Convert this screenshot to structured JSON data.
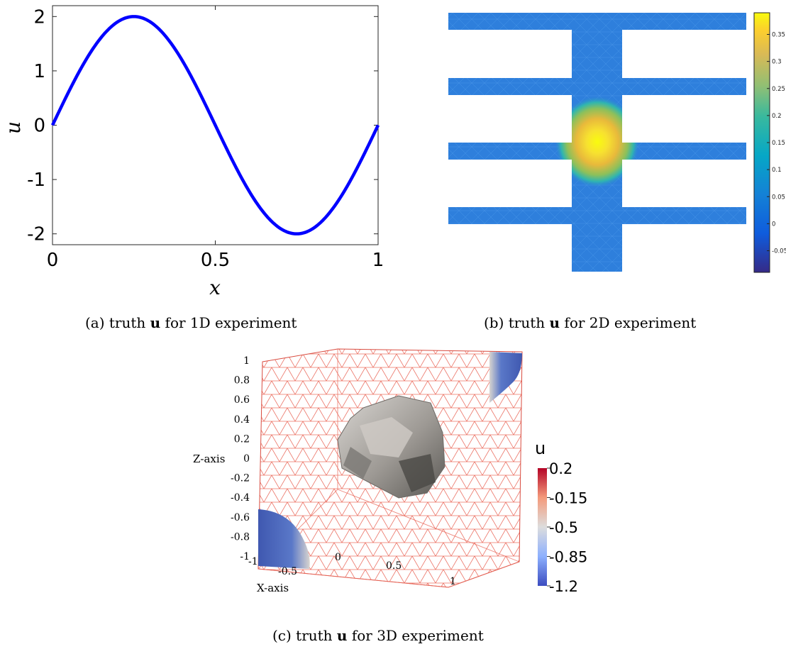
{
  "captions": {
    "a": {
      "prefix": "(a) truth ",
      "symbol": "u",
      "suffix": " for 1D experiment"
    },
    "b": {
      "prefix": "(b) truth ",
      "symbol": "u",
      "suffix": " for 2D experiment"
    },
    "c": {
      "prefix": "(c) truth ",
      "symbol": "u",
      "suffix": " for 3D experiment"
    }
  },
  "chart_data": [
    {
      "id": "a",
      "type": "line",
      "title": "",
      "xlabel": "x",
      "ylabel": "u",
      "xlim": [
        0,
        1
      ],
      "ylim": [
        -2.2,
        2.2
      ],
      "xticks": [
        0,
        0.5,
        1
      ],
      "xtick_labels": [
        "0",
        "0.5",
        "1"
      ],
      "yticks": [
        -2,
        -1,
        0,
        1,
        2
      ],
      "ytick_labels": [
        "-2",
        "-1",
        "0",
        "1",
        "2"
      ],
      "grid": false,
      "line_color": "#0000ff",
      "function": "2*sin(2*pi*x)",
      "x": [
        0,
        0.05,
        0.1,
        0.15,
        0.2,
        0.25,
        0.3,
        0.35,
        0.4,
        0.45,
        0.5,
        0.55,
        0.6,
        0.65,
        0.7,
        0.75,
        0.8,
        0.85,
        0.9,
        0.95,
        1.0
      ],
      "y": [
        0,
        0.618,
        1.176,
        1.618,
        1.902,
        2.0,
        1.902,
        1.618,
        1.176,
        0.618,
        0,
        -0.618,
        -1.176,
        -1.618,
        -1.902,
        -2.0,
        -1.902,
        -1.618,
        -1.176,
        -0.618,
        0
      ]
    },
    {
      "id": "b",
      "type": "heatmap",
      "colormap": "parula",
      "colorbar": {
        "min": -0.09,
        "max": 0.39,
        "ticks": [
          -0.05,
          0,
          0.05,
          0.1,
          0.15,
          0.2,
          0.25,
          0.3,
          0.35
        ],
        "tick_labels": [
          "-0.05",
          "0",
          "0.05",
          "0.1",
          "0.15",
          "0.2",
          "0.25",
          "0.3",
          "0.35"
        ]
      },
      "background_value": 0,
      "peak_value": 0.38
    },
    {
      "id": "c",
      "type": "scatter",
      "zlabel": "Z-axis",
      "xlabel": "X-axis",
      "zticks": [
        "1",
        "0.8",
        "0.6",
        "0.4",
        "0.2",
        "0",
        "-0.2",
        "-0.4",
        "-0.6",
        "-0.8",
        "-1"
      ],
      "xticks": [
        "-1",
        "-0.5",
        "0",
        "0.5",
        "1"
      ],
      "mesh_color": "#e8594a",
      "colorbar": {
        "title": "u",
        "min": -1.2,
        "max": 0.2,
        "ticks": [
          0.2,
          -0.15,
          -0.5,
          -0.85,
          -1.2
        ],
        "tick_labels": [
          "0.2",
          "-0.15",
          "-0.5",
          "-0.85",
          "-1.2"
        ],
        "colors": [
          "#b40426",
          "#f49a7b",
          "#dddddd",
          "#8db0fe",
          "#3b4cc0"
        ]
      }
    }
  ]
}
